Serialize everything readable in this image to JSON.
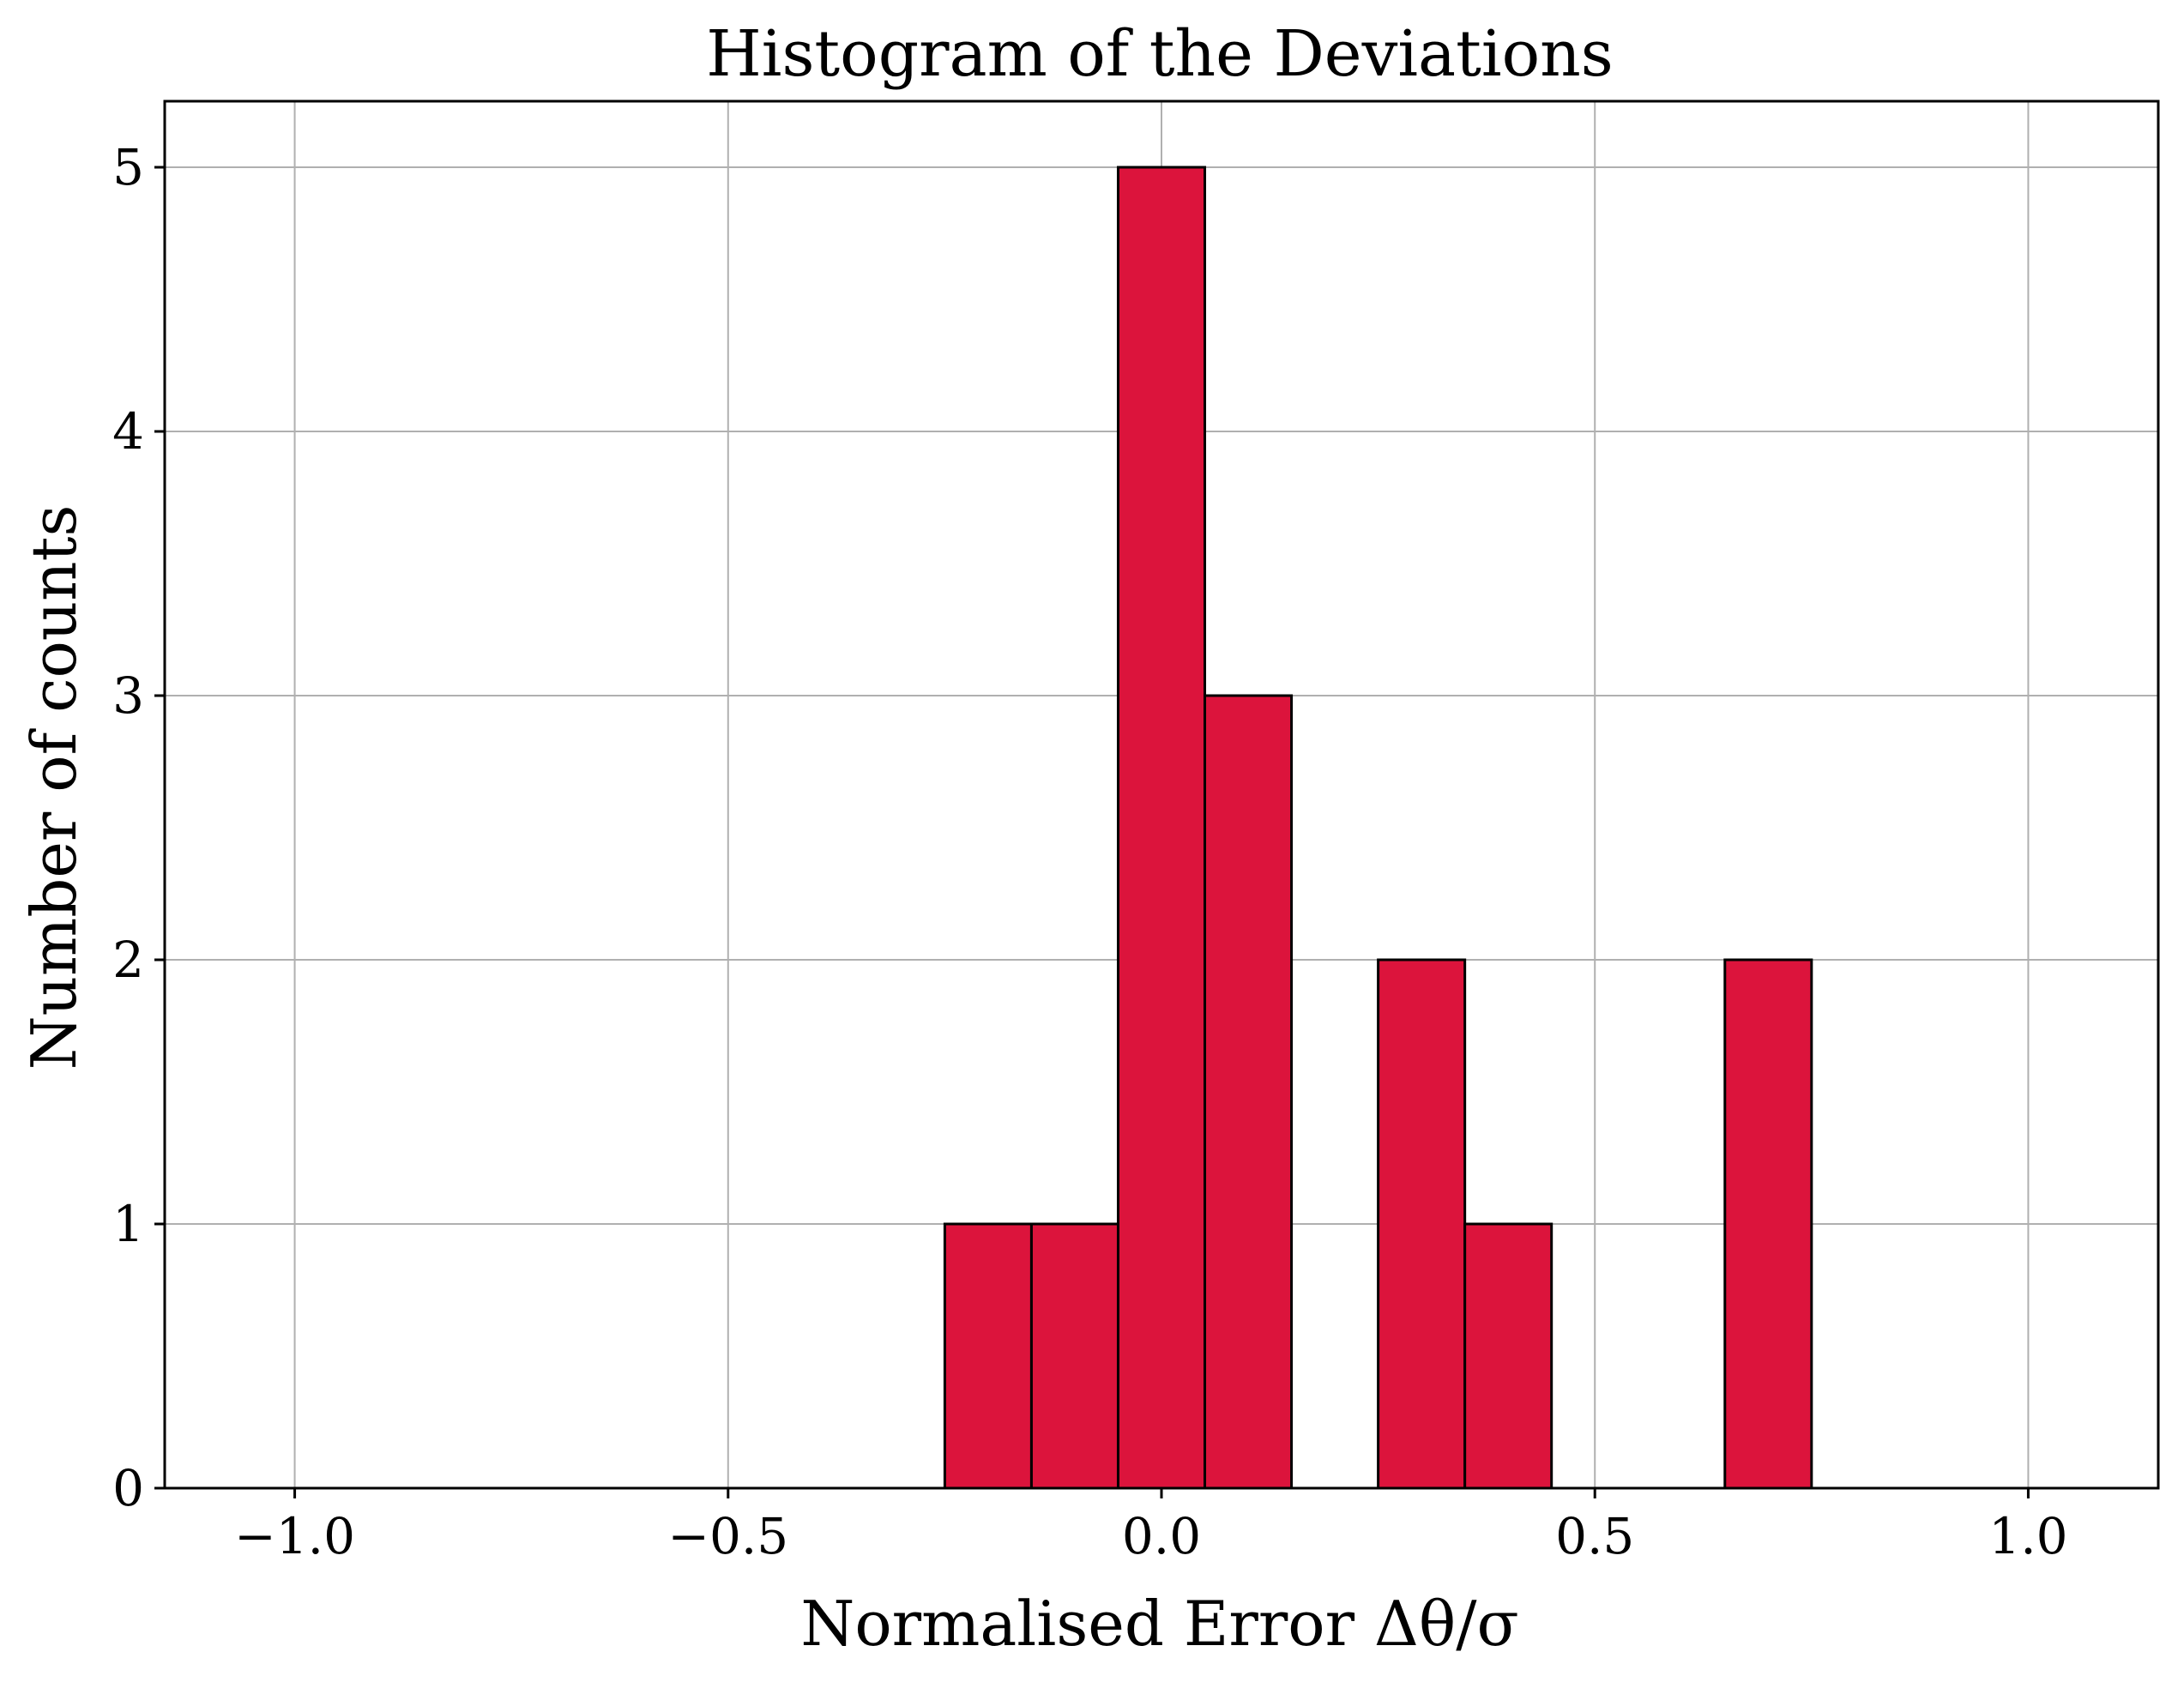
{
  "chart_data": {
    "type": "bar",
    "title": "Histogram of the Deviations",
    "xlabel": "Normalised Error Δθ/σ",
    "ylabel": "Number of counts",
    "xlim": [
      -1.15,
      1.15
    ],
    "ylim": [
      0,
      5.25
    ],
    "grid": true,
    "bin_edges": [
      -1.05,
      -0.95,
      -0.85,
      -0.75,
      -0.65,
      -0.55,
      -0.45,
      -0.35,
      -0.25,
      -0.15,
      -0.05,
      0.05,
      0.15,
      0.25,
      0.35,
      0.45,
      0.55,
      0.65,
      0.75,
      0.85,
      0.95,
      1.05
    ],
    "counts": [
      0,
      0,
      0,
      0,
      0,
      0,
      0,
      0,
      1,
      1,
      5,
      3,
      0,
      2,
      1,
      0,
      0,
      2,
      0,
      0,
      0
    ],
    "bar_color": "#dc143c",
    "edge_color": "#000000",
    "xticks": [
      {
        "value": -1.0,
        "label": "−1.0"
      },
      {
        "value": -0.5,
        "label": "−0.5"
      },
      {
        "value": 0.0,
        "label": "0.0"
      },
      {
        "value": 0.5,
        "label": "0.5"
      },
      {
        "value": 1.0,
        "label": "1.0"
      }
    ],
    "yticks": [
      {
        "value": 0,
        "label": "0"
      },
      {
        "value": 1,
        "label": "1"
      },
      {
        "value": 2,
        "label": "2"
      },
      {
        "value": 3,
        "label": "3"
      },
      {
        "value": 4,
        "label": "4"
      },
      {
        "value": 5,
        "label": "5"
      }
    ]
  }
}
